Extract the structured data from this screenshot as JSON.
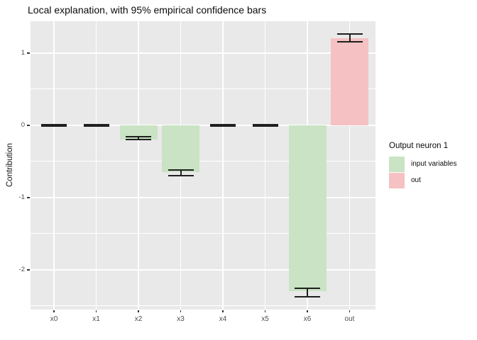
{
  "chart_data": {
    "type": "bar",
    "title": "Local explanation, with 95% empirical confidence bars",
    "xlabel": "",
    "ylabel": "Contribution",
    "categories": [
      "x0",
      "x1",
      "x2",
      "x3",
      "x4",
      "x5",
      "x6",
      "out"
    ],
    "values": [
      0,
      0,
      -0.2,
      -0.65,
      0,
      0,
      -2.3,
      1.2
    ],
    "error_low": [
      -0.012,
      -0.012,
      -0.2,
      -0.7,
      -0.012,
      -0.012,
      -2.37,
      1.16
    ],
    "error_high": [
      0.012,
      0.012,
      -0.16,
      -0.62,
      0.012,
      0.012,
      -2.26,
      1.26
    ],
    "groups": [
      "input variables",
      "input variables",
      "input variables",
      "input variables",
      "input variables",
      "input variables",
      "input variables",
      "out"
    ],
    "yticks": [
      1,
      0,
      -1,
      -2
    ],
    "ytick_labels": [
      "1",
      "0",
      "-1",
      "-2"
    ],
    "ylim": [
      -2.55,
      1.44
    ],
    "minor_grid_step": 0.5,
    "grid": true,
    "colors": {
      "input variables": "#c9e3c4",
      "out": "#f6c1c3",
      "error_bar": "#1f1f1f",
      "panel_background": "#e9e9e9",
      "gridline": "#ffffff",
      "axis_text": "#4d4d4d"
    },
    "legend": {
      "position": "right",
      "title": "Output neuron 1",
      "entries": [
        {
          "label": "input variables",
          "color": "#c9e3c4"
        },
        {
          "label": "out",
          "color": "#f6c1c3"
        }
      ]
    }
  }
}
